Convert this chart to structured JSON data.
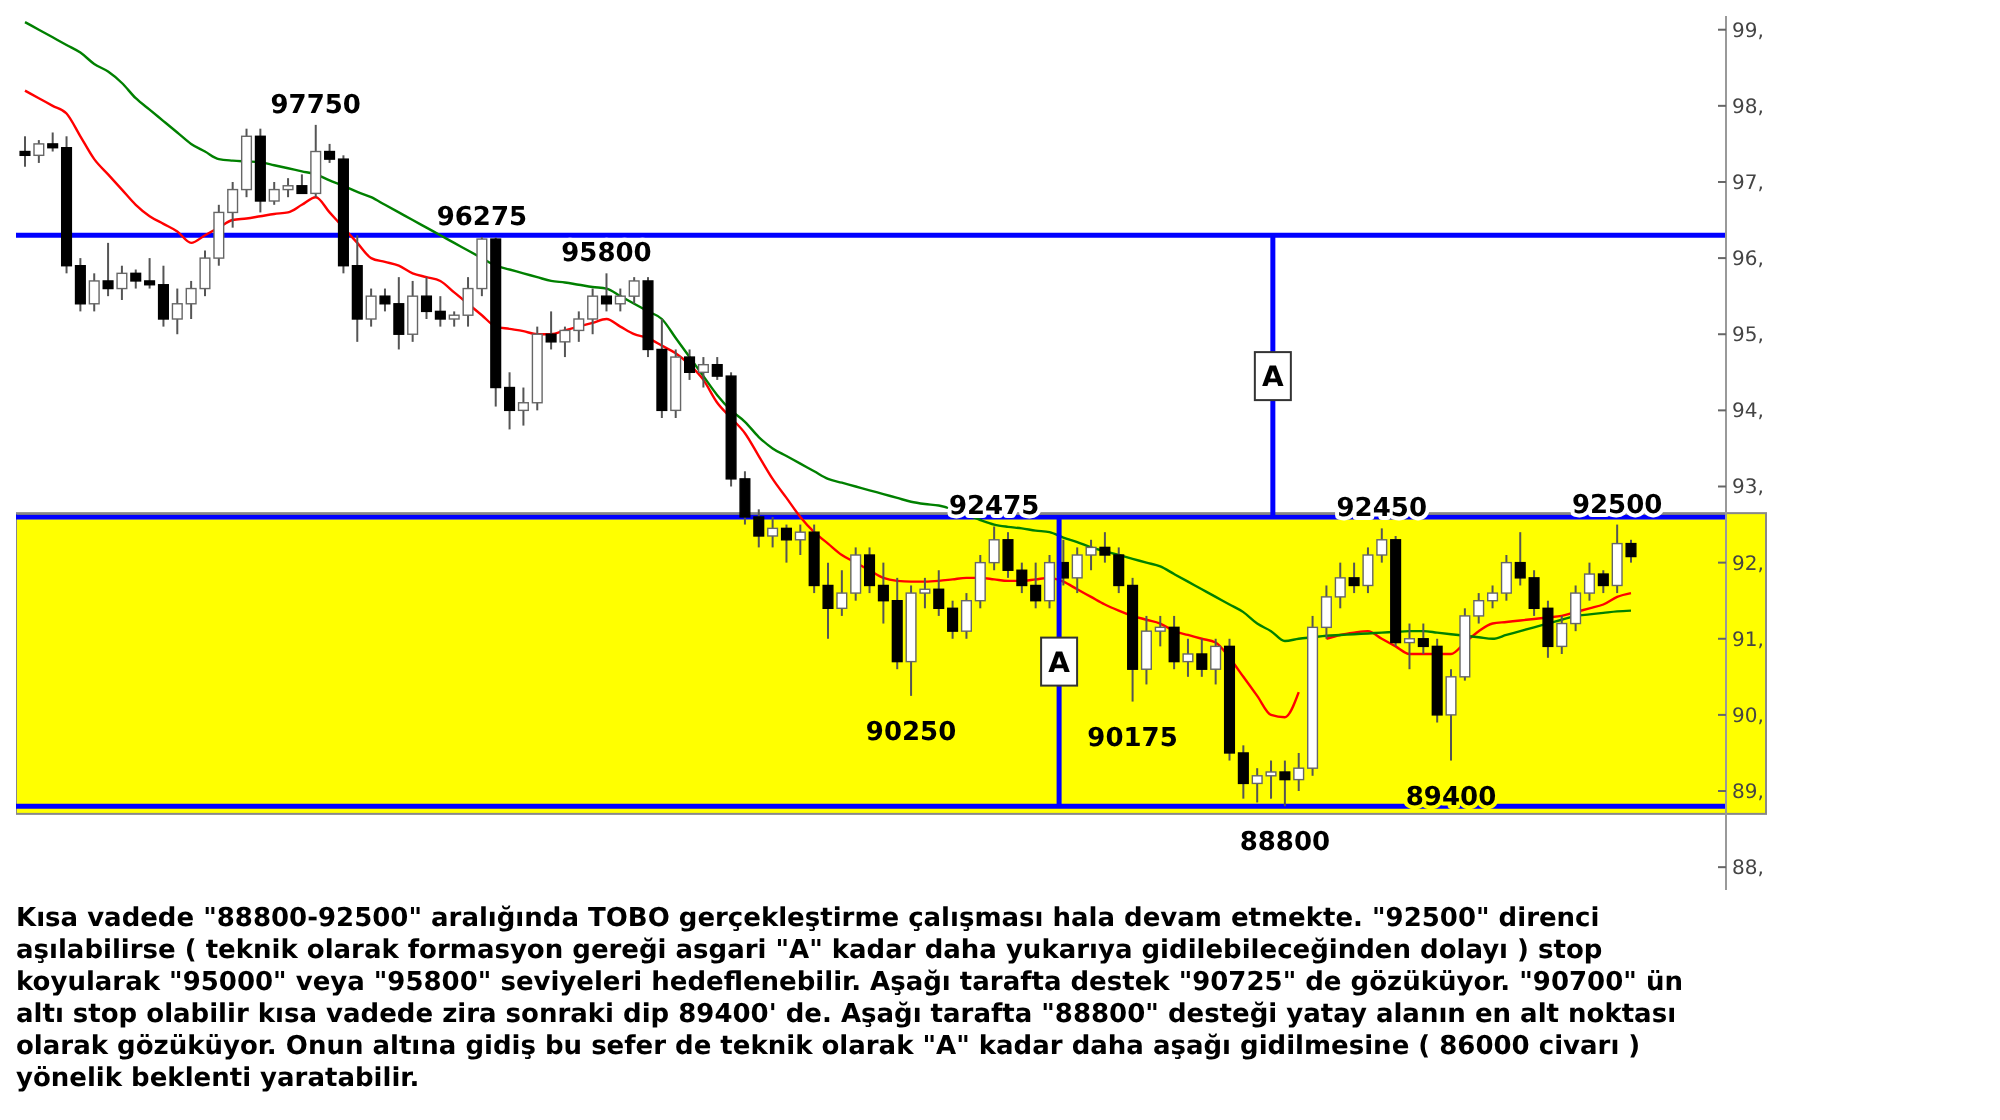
{
  "chart_data": {
    "type": "candlestick",
    "categories": [
      null,
      null,
      null,
      null,
      null,
      null,
      null,
      null,
      null,
      null,
      null,
      null,
      null,
      null,
      null,
      null,
      null,
      null,
      null,
      null,
      null,
      null,
      null,
      null,
      null,
      null,
      null,
      null,
      null,
      null,
      null,
      null,
      null,
      null,
      null,
      null,
      null,
      null,
      null,
      null,
      null,
      null,
      null,
      null,
      null,
      null,
      null,
      null,
      null,
      null,
      null,
      null,
      null,
      null,
      null,
      null,
      null,
      null,
      null,
      null,
      null,
      null,
      null,
      null,
      null,
      null,
      null,
      null,
      null,
      null,
      null,
      null,
      null,
      null,
      null,
      null,
      null,
      null,
      null,
      null,
      null,
      null,
      null,
      null,
      null,
      null,
      null,
      null,
      null,
      null,
      null,
      null,
      null,
      null,
      null,
      null,
      null,
      null,
      null,
      null,
      null,
      null,
      null,
      null,
      null,
      null,
      null,
      null,
      null,
      null,
      null,
      null,
      null,
      null,
      null,
      null,
      null
    ],
    "ohlc": [
      [
        97.4,
        97.6,
        97.2,
        97.35
      ],
      [
        97.35,
        97.55,
        97.25,
        97.5
      ],
      [
        97.5,
        97.65,
        97.4,
        97.45
      ],
      [
        97.45,
        97.6,
        95.8,
        95.9
      ],
      [
        95.9,
        96.0,
        95.3,
        95.4
      ],
      [
        95.4,
        95.8,
        95.3,
        95.7
      ],
      [
        95.7,
        96.2,
        95.5,
        95.6
      ],
      [
        95.6,
        95.9,
        95.45,
        95.8
      ],
      [
        95.8,
        95.85,
        95.6,
        95.7
      ],
      [
        95.7,
        96.0,
        95.6,
        95.65
      ],
      [
        95.65,
        95.9,
        95.1,
        95.2
      ],
      [
        95.2,
        95.6,
        95.0,
        95.4
      ],
      [
        95.4,
        95.7,
        95.2,
        95.6
      ],
      [
        95.6,
        96.1,
        95.5,
        96.0
      ],
      [
        96.0,
        96.7,
        95.9,
        96.6
      ],
      [
        96.6,
        97.0,
        96.4,
        96.9
      ],
      [
        96.9,
        97.7,
        96.8,
        97.6
      ],
      [
        97.6,
        97.7,
        96.6,
        96.75
      ],
      [
        96.75,
        97.0,
        96.7,
        96.9
      ],
      [
        96.9,
        97.05,
        96.8,
        96.95
      ],
      [
        96.95,
        97.1,
        96.85,
        96.85
      ],
      [
        96.85,
        97.75,
        96.8,
        97.4
      ],
      [
        97.4,
        97.5,
        97.25,
        97.3
      ],
      [
        97.3,
        97.35,
        95.8,
        95.9
      ],
      [
        95.9,
        96.3,
        94.9,
        95.2
      ],
      [
        95.2,
        95.6,
        95.1,
        95.5
      ],
      [
        95.5,
        95.6,
        95.3,
        95.4
      ],
      [
        95.4,
        95.75,
        94.8,
        95.0
      ],
      [
        95.0,
        95.7,
        94.9,
        95.5
      ],
      [
        95.5,
        95.75,
        95.2,
        95.3
      ],
      [
        95.3,
        95.5,
        95.1,
        95.2
      ],
      [
        95.2,
        95.3,
        95.1,
        95.25
      ],
      [
        95.25,
        95.75,
        95.1,
        95.6
      ],
      [
        95.6,
        96.275,
        95.5,
        96.25
      ],
      [
        96.25,
        96.27,
        94.05,
        94.3
      ],
      [
        94.3,
        94.5,
        93.75,
        94.0
      ],
      [
        94.0,
        94.3,
        93.8,
        94.1
      ],
      [
        94.1,
        95.1,
        94.0,
        95.0
      ],
      [
        95.0,
        95.3,
        94.8,
        94.9
      ],
      [
        94.9,
        95.1,
        94.7,
        95.05
      ],
      [
        95.05,
        95.3,
        94.9,
        95.2
      ],
      [
        95.2,
        95.6,
        95.0,
        95.5
      ],
      [
        95.5,
        95.8,
        95.3,
        95.4
      ],
      [
        95.4,
        95.6,
        95.3,
        95.5
      ],
      [
        95.5,
        95.75,
        95.4,
        95.7
      ],
      [
        95.7,
        95.75,
        94.7,
        94.8
      ],
      [
        94.8,
        95.2,
        93.9,
        94.0
      ],
      [
        94.0,
        94.8,
        93.9,
        94.7
      ],
      [
        94.7,
        94.8,
        94.4,
        94.5
      ],
      [
        94.5,
        94.7,
        94.3,
        94.6
      ],
      [
        94.6,
        94.7,
        94.4,
        94.45
      ],
      [
        94.45,
        94.5,
        93.0,
        93.1
      ],
      [
        93.1,
        93.2,
        92.5,
        92.6
      ],
      [
        92.6,
        92.7,
        92.2,
        92.35
      ],
      [
        92.35,
        92.6,
        92.2,
        92.45
      ],
      [
        92.45,
        92.5,
        92.0,
        92.3
      ],
      [
        92.3,
        92.5,
        92.1,
        92.4
      ],
      [
        92.4,
        92.5,
        91.6,
        91.7
      ],
      [
        91.7,
        92.0,
        91.0,
        91.4
      ],
      [
        91.4,
        91.9,
        91.3,
        91.6
      ],
      [
        91.6,
        92.2,
        91.5,
        92.1
      ],
      [
        92.1,
        92.2,
        91.6,
        91.7
      ],
      [
        91.7,
        92.0,
        91.2,
        91.5
      ],
      [
        91.5,
        91.8,
        90.6,
        90.7
      ],
      [
        90.7,
        91.7,
        90.25,
        91.6
      ],
      [
        91.6,
        91.8,
        91.4,
        91.65
      ],
      [
        91.65,
        91.9,
        91.3,
        91.4
      ],
      [
        91.4,
        91.5,
        91.0,
        91.1
      ],
      [
        91.1,
        91.6,
        91.0,
        91.5
      ],
      [
        91.5,
        92.1,
        91.4,
        92.0
      ],
      [
        92.0,
        92.475,
        91.9,
        92.3
      ],
      [
        92.3,
        92.4,
        91.8,
        91.9
      ],
      [
        91.9,
        92.0,
        91.6,
        91.7
      ],
      [
        91.7,
        92.0,
        91.4,
        91.5
      ],
      [
        91.5,
        92.1,
        91.4,
        92.0
      ],
      [
        92.0,
        92.3,
        91.7,
        91.8
      ],
      [
        91.8,
        92.2,
        91.6,
        92.1
      ],
      [
        92.1,
        92.3,
        91.9,
        92.2
      ],
      [
        92.2,
        92.4,
        92.0,
        92.1
      ],
      [
        92.1,
        92.2,
        91.6,
        91.7
      ],
      [
        91.7,
        91.8,
        90.175,
        90.6
      ],
      [
        90.6,
        91.3,
        90.4,
        91.1
      ],
      [
        91.1,
        91.3,
        90.9,
        91.15
      ],
      [
        91.15,
        91.3,
        90.6,
        90.7
      ],
      [
        90.7,
        91.0,
        90.5,
        90.8
      ],
      [
        90.8,
        91.0,
        90.5,
        90.6
      ],
      [
        90.6,
        91.0,
        90.4,
        90.9
      ],
      [
        90.9,
        91.0,
        89.4,
        89.5
      ],
      [
        89.5,
        89.6,
        88.9,
        89.1
      ],
      [
        89.1,
        89.3,
        88.85,
        89.2
      ],
      [
        89.2,
        89.4,
        88.9,
        89.25
      ],
      [
        89.25,
        89.4,
        88.8,
        89.15
      ],
      [
        89.15,
        89.5,
        89.0,
        89.3
      ],
      [
        89.3,
        91.3,
        89.2,
        91.15
      ],
      [
        91.15,
        91.7,
        91.0,
        91.55
      ],
      [
        91.55,
        92.0,
        91.4,
        91.8
      ],
      [
        91.8,
        92.0,
        91.6,
        91.7
      ],
      [
        91.7,
        92.2,
        91.6,
        92.1
      ],
      [
        92.1,
        92.45,
        92.0,
        92.3
      ],
      [
        92.3,
        92.35,
        90.9,
        90.95
      ],
      [
        90.95,
        91.2,
        90.6,
        91.0
      ],
      [
        91.0,
        91.2,
        90.8,
        90.9
      ],
      [
        90.9,
        91.0,
        89.9,
        90.0
      ],
      [
        90.0,
        90.6,
        89.4,
        90.5
      ],
      [
        90.5,
        91.4,
        90.45,
        91.3
      ],
      [
        91.3,
        91.6,
        91.2,
        91.5
      ],
      [
        91.5,
        91.7,
        91.4,
        91.6
      ],
      [
        91.6,
        92.1,
        91.5,
        92.0
      ],
      [
        92.0,
        92.4,
        91.7,
        91.8
      ],
      [
        91.8,
        91.9,
        91.3,
        91.4
      ],
      [
        91.4,
        91.5,
        90.75,
        90.9
      ],
      [
        90.9,
        91.3,
        90.8,
        91.2
      ],
      [
        91.2,
        91.7,
        91.1,
        91.6
      ],
      [
        91.6,
        92.0,
        91.5,
        91.85
      ],
      [
        91.85,
        91.9,
        91.6,
        91.7
      ],
      [
        91.7,
        92.5,
        91.6,
        92.25
      ],
      [
        92.25,
        92.3,
        92.0,
        92.08
      ]
    ],
    "series": [
      {
        "type": "line",
        "color": "#ff0000",
        "values": [
          98.2,
          98.1,
          98.0,
          97.9,
          97.6,
          97.3,
          97.1,
          96.9,
          96.7,
          96.55,
          96.45,
          96.35,
          96.2,
          96.3,
          96.4,
          96.5,
          96.52,
          96.55,
          96.58,
          96.6,
          96.7,
          96.8,
          96.6,
          96.4,
          96.2,
          96.0,
          95.95,
          95.9,
          95.8,
          95.75,
          95.7,
          95.55,
          95.4,
          95.25,
          95.1,
          95.07,
          95.04,
          95.0,
          95.0,
          95.05,
          95.1,
          95.15,
          95.2,
          95.1,
          95.0,
          94.95,
          94.85,
          94.75,
          94.6,
          94.4,
          94.1,
          93.9,
          93.7,
          93.4,
          93.1,
          92.85,
          92.6,
          92.4,
          92.25,
          92.1,
          92.0,
          91.9,
          91.8,
          91.76,
          91.75,
          91.75,
          91.76,
          91.78,
          91.8,
          91.8,
          91.78,
          91.76,
          91.76,
          91.78,
          91.8,
          91.75,
          91.65,
          91.55,
          91.45,
          91.37,
          91.3,
          91.25,
          91.2,
          91.1,
          91.05,
          91.0,
          90.95,
          90.75,
          90.5,
          90.25,
          90.0,
          89.97,
          90.3,
          null,
          91.0,
          91.05,
          91.08,
          91.1,
          91.0,
          90.9,
          90.8,
          90.8,
          90.8,
          90.8,
          90.95,
          91.1,
          91.2,
          91.22,
          91.24,
          91.26,
          91.28,
          91.3,
          91.35,
          91.4,
          91.45,
          91.55,
          91.6
        ]
      },
      {
        "type": "line",
        "color": "#008000",
        "values": [
          99.1,
          99.0,
          98.9,
          98.8,
          98.7,
          98.55,
          98.45,
          98.3,
          98.1,
          97.95,
          97.8,
          97.65,
          97.5,
          97.4,
          97.3,
          97.28,
          97.27,
          97.26,
          97.22,
          97.18,
          97.14,
          97.1,
          97.02,
          96.95,
          96.87,
          96.8,
          96.7,
          96.6,
          96.5,
          96.4,
          96.3,
          96.2,
          96.1,
          96.0,
          95.9,
          95.85,
          95.8,
          95.75,
          95.7,
          95.68,
          95.65,
          95.62,
          95.6,
          95.5,
          95.4,
          95.3,
          95.2,
          94.95,
          94.7,
          94.45,
          94.2,
          94.0,
          93.85,
          93.65,
          93.5,
          93.4,
          93.3,
          93.2,
          93.1,
          93.05,
          93.0,
          92.95,
          92.9,
          92.85,
          92.8,
          92.77,
          92.75,
          92.7,
          92.63,
          92.56,
          92.5,
          92.47,
          92.45,
          92.42,
          92.4,
          92.33,
          92.27,
          92.2,
          92.15,
          92.1,
          92.05,
          92.0,
          91.95,
          91.85,
          91.75,
          91.65,
          91.55,
          91.45,
          91.35,
          91.2,
          91.1,
          90.97,
          91.0,
          91.02,
          91.04,
          91.05,
          91.06,
          91.07,
          91.08,
          91.09,
          91.1,
          91.1,
          91.08,
          91.06,
          91.04,
          91.02,
          91.0,
          91.05,
          91.1,
          91.15,
          91.2,
          91.25,
          91.3,
          91.32,
          91.34,
          91.36,
          91.37
        ]
      }
    ],
    "ylim": [
      87.7,
      99.18
    ],
    "yticks": [
      {
        "value": 88,
        "label": "88,"
      },
      {
        "value": 89,
        "label": "89,"
      },
      {
        "value": 90,
        "label": "90,"
      },
      {
        "value": 91,
        "label": "91,"
      },
      {
        "value": 92,
        "label": "92,"
      },
      {
        "value": 93,
        "label": "93,"
      },
      {
        "value": 94,
        "label": "94,"
      },
      {
        "value": 95,
        "label": "95,"
      },
      {
        "value": 96,
        "label": "96,"
      },
      {
        "value": 97,
        "label": "97,"
      },
      {
        "value": 98,
        "label": "98,"
      },
      {
        "value": 99,
        "label": "99,"
      }
    ],
    "bands": [
      {
        "axis": "y",
        "from": 88.7,
        "to": 92.65,
        "color": "#ffff00"
      }
    ],
    "ref_lines": [
      {
        "axis": "y",
        "value": 96.3,
        "color": "#0000ff"
      },
      {
        "axis": "y",
        "value": 92.6,
        "color": "#0000ff"
      },
      {
        "axis": "y",
        "value": 88.8,
        "color": "#0000ff"
      }
    ],
    "annotations": [
      {
        "text": "97750",
        "y": 97.75
      },
      {
        "text": "96275",
        "y": 96.275
      },
      {
        "text": "95800",
        "y": 95.8
      },
      {
        "text": "92475",
        "y": 92.475
      },
      {
        "text": "92450",
        "y": 92.45
      },
      {
        "text": "92500",
        "y": 92.5
      },
      {
        "text": "90250",
        "y": 90.25
      },
      {
        "text": "90175",
        "y": 90.175
      },
      {
        "text": "88800",
        "y": 88.8
      },
      {
        "text": "89400",
        "y": 89.4
      },
      "A",
      "A",
      "Kısa vadede \"88800-92500\" aralığında TOBO gerçekleştirme çalışması hala devam etmekte. \"92500\" direnci aşılabilirse ( teknik olarak formasyon gereği asgari \"A\" kadar daha yukarıya gidilebileceğinden dolayı ) stop koyularak \"95000\" veya \"95800\" seviyeleri hedeflenebilir. Aşağı tarafta destek \"90725\" de gözüküyor. \"90700\" ün altı stop olabilir kısa vadede zira sonraki dip 89400' de. Aşağı tarafta \"88800\" desteği yatay alanın en alt noktası olarak gözüküyor. Onun altına gidiş bu sefer de teknik olarak \"A\" kadar daha aşağı gidilmesine ( 86000 civarı ) yönelik beklenti yaratabilir."
    ]
  }
}
